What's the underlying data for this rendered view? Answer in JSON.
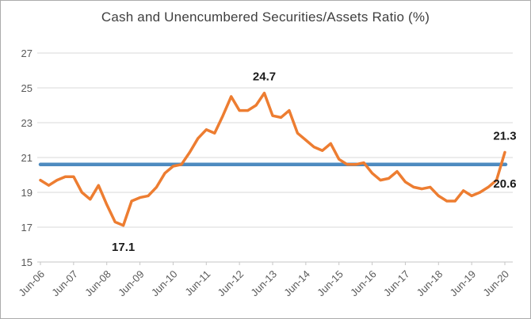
{
  "chart_data": {
    "type": "line",
    "title": "Cash and Unencumbered Securities/Assets Ratio (%)",
    "xlabel": "",
    "ylabel": "",
    "ylim": [
      15,
      27
    ],
    "y_ticks": [
      15,
      17,
      19,
      21,
      23,
      25,
      27
    ],
    "grid": true,
    "legend": "none",
    "x_tick_labels": [
      "Jun-06",
      "Jun-07",
      "Jun-08",
      "Jun-09",
      "Jun-10",
      "Jun-11",
      "Jun-12",
      "Jun-13",
      "Jun-14",
      "Jun-15",
      "Jun-16",
      "Jun-17",
      "Jun-18",
      "Jun-19",
      "Jun-20"
    ],
    "x": [
      "Jun-06",
      "Sep-06",
      "Dec-06",
      "Mar-07",
      "Jun-07",
      "Sep-07",
      "Dec-07",
      "Mar-08",
      "Jun-08",
      "Sep-08",
      "Dec-08",
      "Mar-09",
      "Jun-09",
      "Sep-09",
      "Dec-09",
      "Mar-10",
      "Jun-10",
      "Sep-10",
      "Dec-10",
      "Mar-11",
      "Jun-11",
      "Sep-11",
      "Dec-11",
      "Mar-12",
      "Jun-12",
      "Sep-12",
      "Dec-12",
      "Mar-13",
      "Jun-13",
      "Sep-13",
      "Dec-13",
      "Mar-14",
      "Jun-14",
      "Sep-14",
      "Dec-14",
      "Mar-15",
      "Jun-15",
      "Sep-15",
      "Dec-15",
      "Mar-16",
      "Jun-16",
      "Sep-16",
      "Dec-16",
      "Mar-17",
      "Jun-17",
      "Sep-17",
      "Dec-17",
      "Mar-18",
      "Jun-18",
      "Sep-18",
      "Dec-18",
      "Mar-19",
      "Jun-19",
      "Sep-19",
      "Dec-19",
      "Mar-20",
      "Jun-20"
    ],
    "series": [
      {
        "name": "Cash and Unencumbered Securities/Assets Ratio",
        "color": "#ED7D31",
        "width": 3.5,
        "values": [
          19.7,
          19.4,
          19.7,
          19.9,
          19.9,
          19.0,
          18.6,
          19.4,
          18.3,
          17.3,
          17.1,
          18.5,
          18.7,
          18.8,
          19.3,
          20.1,
          20.5,
          20.6,
          21.3,
          22.1,
          22.6,
          22.4,
          23.4,
          24.5,
          23.7,
          23.7,
          24.0,
          24.7,
          23.4,
          23.3,
          23.7,
          22.4,
          22.0,
          21.6,
          21.4,
          21.8,
          20.9,
          20.6,
          20.6,
          20.7,
          20.1,
          19.7,
          19.8,
          20.2,
          19.6,
          19.3,
          19.2,
          19.3,
          18.8,
          18.5,
          18.5,
          19.1,
          18.8,
          19.0,
          19.3,
          19.7,
          21.3
        ]
      }
    ],
    "benchmark": {
      "value": 20.6,
      "label": "20.6",
      "color": "#4e8bc0",
      "width": 4.5
    },
    "annotations": [
      {
        "text": "24.7",
        "point_index": 27,
        "placement": "above"
      },
      {
        "text": "17.1",
        "point_index": 10,
        "placement": "below"
      },
      {
        "text": "21.3",
        "point_index": 56,
        "placement": "above"
      }
    ],
    "palette": {
      "grid": "#d9d9d9",
      "axis": "#c6c6c6",
      "tick_text": "#595959",
      "label_text": "#1a1a1a",
      "title_text": "#3f3f3f"
    }
  }
}
